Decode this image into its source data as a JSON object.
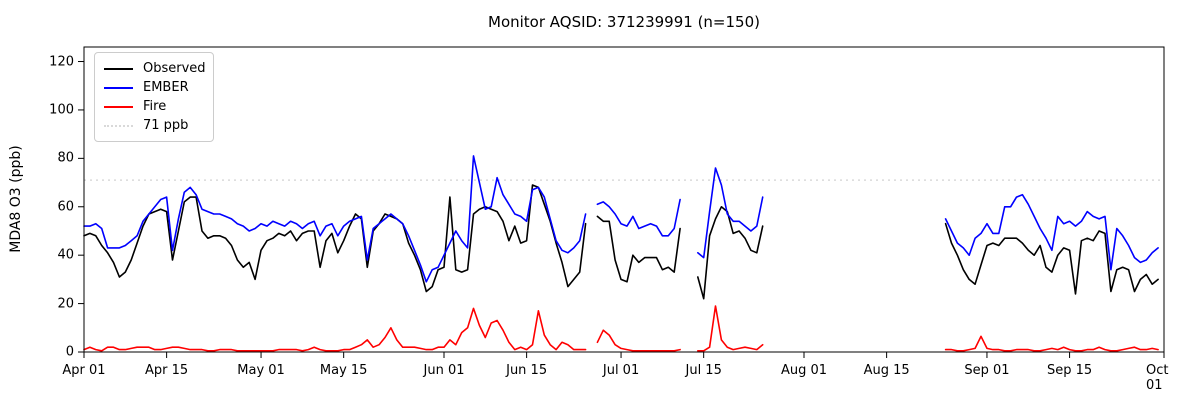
{
  "title": "Monitor AQSID: 371239991 (n=150)",
  "legend": {
    "items": [
      {
        "label": "Observed",
        "color": "#000000",
        "style": "solid"
      },
      {
        "label": "EMBER",
        "color": "#0000ff",
        "style": "solid"
      },
      {
        "label": "Fire",
        "color": "#ff0000",
        "style": "solid"
      },
      {
        "label": "71 ppb",
        "color": "#d9d9d9",
        "style": "dotted"
      }
    ]
  },
  "chart_data": {
    "type": "line",
    "title": "Monitor AQSID: 371239991 (n=150)",
    "xlabel": "",
    "ylabel": "MDA8 O3 (ppb)",
    "ylim": [
      0,
      126
    ],
    "xlim_days": [
      0,
      183
    ],
    "grid": false,
    "legend_position": "upper left",
    "y_ticks": [
      0,
      20,
      40,
      60,
      80,
      100,
      120
    ],
    "x_ticks": [
      {
        "day": 0,
        "label": "Apr 01"
      },
      {
        "day": 14,
        "label": "Apr 15"
      },
      {
        "day": 30,
        "label": "May 01"
      },
      {
        "day": 44,
        "label": "May 15"
      },
      {
        "day": 61,
        "label": "Jun 01"
      },
      {
        "day": 75,
        "label": "Jun 15"
      },
      {
        "day": 91,
        "label": "Jul 01"
      },
      {
        "day": 105,
        "label": "Jul 15"
      },
      {
        "day": 122,
        "label": "Aug 01"
      },
      {
        "day": 136,
        "label": "Aug 15"
      },
      {
        "day": 153,
        "label": "Sep 01"
      },
      {
        "day": 167,
        "label": "Sep 15"
      },
      {
        "day": 183,
        "label": "Oct 01"
      }
    ],
    "threshold": {
      "value": 71,
      "label": "71 ppb",
      "color": "#d9d9d9"
    },
    "series_meta": [
      {
        "key": "observed",
        "name": "Observed",
        "color": "#000000"
      },
      {
        "key": "ember",
        "name": "EMBER",
        "color": "#0000ff"
      },
      {
        "key": "fire",
        "name": "Fire",
        "color": "#ff0000"
      }
    ],
    "segments": [
      {
        "start_date": "Apr 01",
        "start_day": 0,
        "observed": [
          48,
          49,
          48,
          44,
          41,
          37,
          31,
          33,
          38,
          45,
          52,
          57,
          58,
          59,
          58,
          38,
          50,
          62,
          64,
          64,
          50,
          47,
          48,
          48,
          47,
          44,
          38,
          35,
          37,
          30,
          42,
          46,
          47,
          49,
          48,
          50,
          46,
          49,
          50,
          50,
          35,
          46,
          49,
          41,
          46,
          52,
          57,
          55,
          35,
          50,
          53,
          57,
          56,
          55,
          53,
          45,
          40,
          34,
          25,
          27,
          34,
          35,
          64,
          34,
          33,
          34,
          57,
          59,
          60,
          59,
          58,
          54,
          46,
          52,
          45,
          46,
          69,
          68,
          61,
          54,
          45,
          37,
          27,
          30,
          33,
          53
        ],
        "ember": [
          52,
          52,
          53,
          51,
          43,
          43,
          43,
          44,
          46,
          48,
          54,
          57,
          60,
          63,
          64,
          42,
          55,
          66,
          68,
          65,
          59,
          58,
          57,
          57,
          56,
          55,
          53,
          52,
          50,
          51,
          53,
          52,
          54,
          53,
          52,
          54,
          53,
          51,
          53,
          54,
          48,
          52,
          53,
          48,
          52,
          54,
          55,
          56,
          38,
          51,
          53,
          55,
          57,
          55,
          53,
          48,
          42,
          36,
          29,
          34,
          35,
          40,
          45,
          50,
          46,
          43,
          81,
          70,
          59,
          60,
          72,
          65,
          61,
          57,
          56,
          54,
          67,
          68,
          64,
          55,
          46,
          42,
          41,
          43,
          46,
          57
        ],
        "fire": [
          1,
          2,
          1,
          0.5,
          2,
          2,
          1,
          1,
          1.5,
          2,
          2,
          2,
          1,
          1,
          1.5,
          2,
          2,
          1.5,
          1,
          1,
          1,
          0.5,
          0.5,
          1,
          1,
          1,
          0.5,
          0.5,
          0.5,
          0.5,
          0.5,
          0.5,
          0.5,
          1,
          1,
          1,
          1,
          0.5,
          1,
          2,
          1,
          0.5,
          0.5,
          0.5,
          1,
          1,
          2,
          3,
          5,
          2,
          3,
          6,
          10,
          5,
          2,
          2,
          2,
          1.5,
          1,
          1,
          2,
          2,
          5,
          3,
          8,
          10,
          18,
          11,
          6,
          12,
          13,
          9,
          4,
          1,
          2,
          1,
          3,
          17,
          7,
          3,
          1,
          4,
          3,
          1,
          1,
          1
        ]
      },
      {
        "start_date": "Jun 27",
        "start_day": 87,
        "observed": [
          56,
          54,
          54,
          38,
          30,
          29,
          40,
          37,
          39,
          39,
          39,
          34,
          35,
          33,
          51
        ],
        "ember": [
          61,
          62,
          60,
          57,
          53,
          52,
          56,
          51,
          52,
          53,
          52,
          48,
          48,
          51,
          63
        ],
        "fire": [
          4,
          9,
          7,
          3,
          1.5,
          1,
          0.5,
          0.5,
          0.5,
          0.5,
          0.5,
          0.5,
          0.5,
          0.5,
          1
        ]
      },
      {
        "start_date": "Jul 14",
        "start_day": 104,
        "observed": [
          31,
          22,
          48,
          55,
          60,
          58,
          49,
          50,
          47,
          42,
          41,
          52
        ],
        "ember": [
          41,
          39,
          58,
          76,
          69,
          57,
          54,
          54,
          52,
          50,
          52,
          64
        ],
        "fire": [
          0.5,
          0.5,
          2,
          19,
          5,
          2,
          1,
          1.5,
          2,
          1.5,
          1,
          3
        ]
      },
      {
        "start_date": "Aug 25",
        "start_day": 146,
        "observed": [
          53,
          45,
          40,
          34,
          30,
          28,
          36,
          44,
          45,
          44,
          47,
          47,
          47,
          45,
          42,
          40,
          44,
          35,
          33,
          40,
          43,
          42,
          24,
          46,
          47,
          46,
          50,
          49,
          25,
          34,
          35,
          34,
          25,
          30,
          32,
          28,
          30
        ],
        "ember": [
          55,
          50,
          45,
          43,
          40,
          47,
          49,
          53,
          49,
          49,
          60,
          60,
          64,
          65,
          61,
          56,
          51,
          47,
          42,
          56,
          53,
          54,
          52,
          54,
          58,
          56,
          55,
          56,
          34,
          51,
          48,
          44,
          39,
          37,
          38,
          41,
          43
        ],
        "fire": [
          1,
          1,
          0.5,
          0.5,
          1,
          1.5,
          6.5,
          1.5,
          1,
          1,
          0.5,
          0.5,
          1,
          1,
          1,
          0.5,
          0.5,
          1,
          1.5,
          1,
          2,
          1,
          0.5,
          0.5,
          1,
          1,
          2,
          1,
          0.5,
          0.5,
          1,
          1.5,
          2,
          1,
          1,
          1.5,
          1
        ]
      }
    ]
  }
}
